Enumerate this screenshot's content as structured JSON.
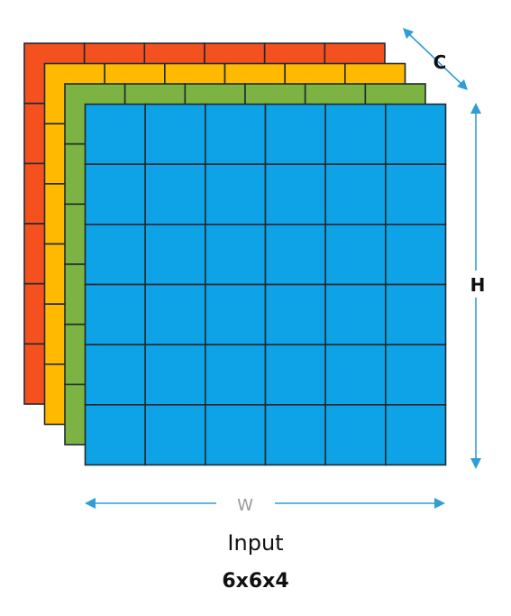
{
  "diagram": {
    "grid": {
      "rows": 6,
      "cols": 6
    },
    "layers": [
      {
        "name": "layer-1",
        "color": "#f4511e"
      },
      {
        "name": "layer-2",
        "color": "#ffba00"
      },
      {
        "name": "layer-3",
        "color": "#7cb342"
      },
      {
        "name": "layer-4",
        "color": "#0ea2e6"
      }
    ],
    "grid_line_color": "#1f2a30",
    "arrow_color": "#2f9ed6",
    "labels": {
      "channels": "C",
      "height": "H",
      "width": "W"
    },
    "caption": {
      "title": "Input",
      "dims": "6x6x4"
    }
  }
}
